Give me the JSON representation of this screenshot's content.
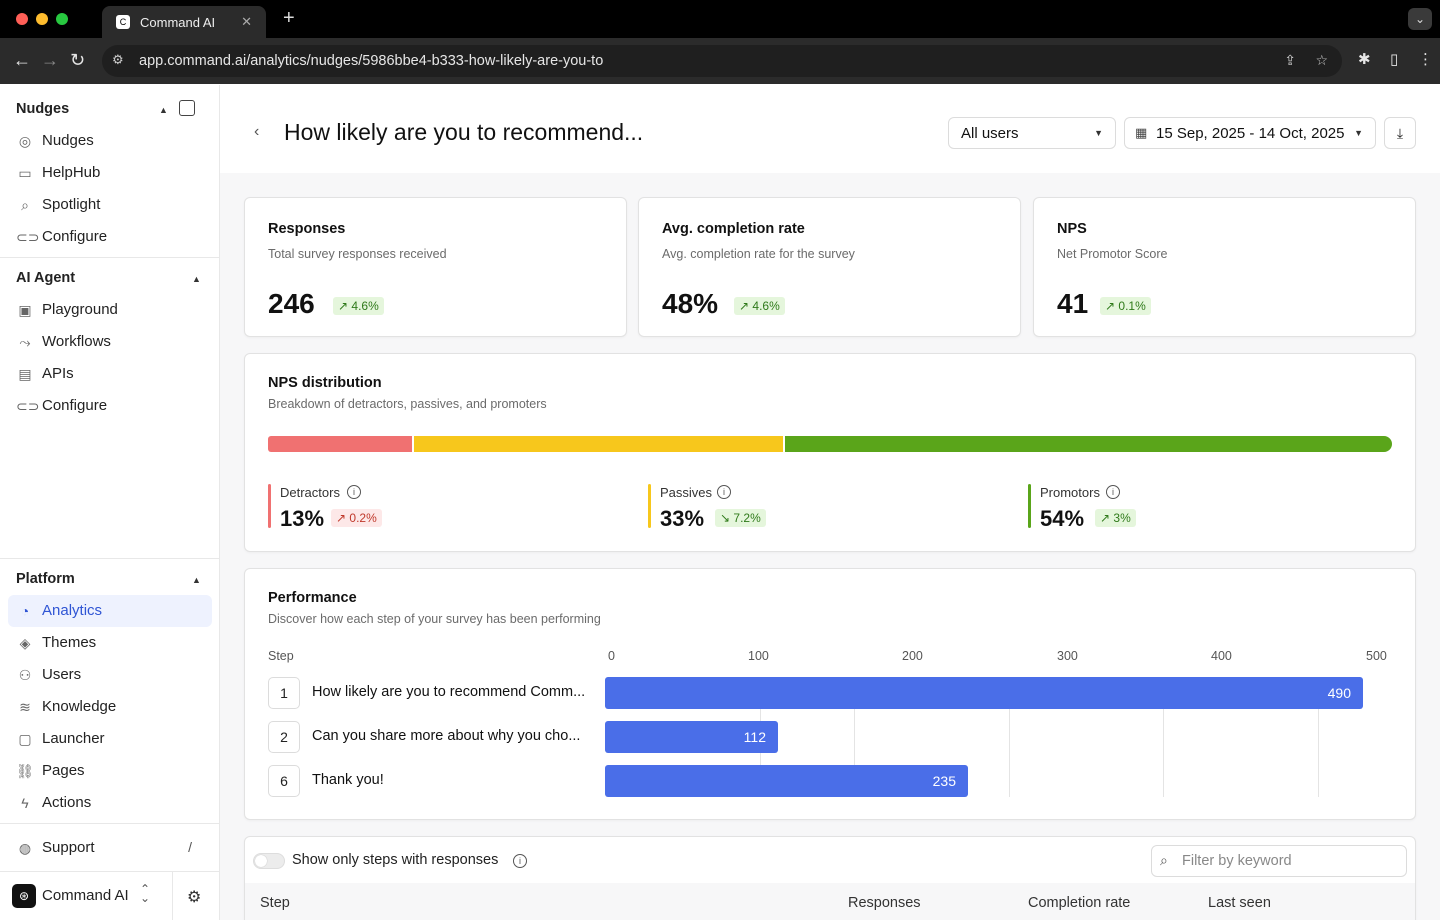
{
  "browser": {
    "tab_title": "Command AI",
    "tab_icon": "C",
    "url": "app.command.ai/analytics/nudges/5986bbe4-b333-how-likely-are-you-to"
  },
  "sidebar": {
    "sections": [
      {
        "title": "Nudges",
        "items": [
          {
            "label": "Nudges",
            "icon": "compass-icon"
          },
          {
            "label": "HelpHub",
            "icon": "book-icon"
          },
          {
            "label": "Spotlight",
            "icon": "search-icon"
          },
          {
            "label": "Configure",
            "icon": "toggle-icon"
          }
        ]
      },
      {
        "title": "AI Agent",
        "items": [
          {
            "label": "Playground",
            "icon": "robot-icon"
          },
          {
            "label": "Workflows",
            "icon": "workflow-icon"
          },
          {
            "label": "APIs",
            "icon": "api-icon"
          },
          {
            "label": "Configure",
            "icon": "toggle-icon"
          }
        ]
      },
      {
        "title": "Platform",
        "items": [
          {
            "label": "Analytics",
            "icon": "pie-chart-icon",
            "active": true
          },
          {
            "label": "Themes",
            "icon": "paint-icon"
          },
          {
            "label": "Users",
            "icon": "users-icon"
          },
          {
            "label": "Knowledge",
            "icon": "layers-icon"
          },
          {
            "label": "Launcher",
            "icon": "launcher-icon"
          },
          {
            "label": "Pages",
            "icon": "link-icon"
          },
          {
            "label": "Actions",
            "icon": "bolt-icon"
          }
        ]
      }
    ],
    "support": {
      "label": "Support",
      "shortcut": "/"
    },
    "workspace": {
      "name": "Command AI"
    }
  },
  "header": {
    "title": "How likely are you to recommend...",
    "audience_select": "All users",
    "date_range": "15 Sep, 2025 - 14 Oct, 2025"
  },
  "stats": [
    {
      "title": "Responses",
      "subtitle": "Total survey responses received",
      "value": "246",
      "delta": "4.6%",
      "direction": "up"
    },
    {
      "title": "Avg. completion rate",
      "subtitle": "Avg. completion rate for the survey",
      "value": "48%",
      "delta": "4.6%",
      "direction": "up"
    },
    {
      "title": "NPS",
      "subtitle": "Net Promotor Score",
      "value": "41",
      "delta": "0.1%",
      "direction": "up"
    }
  ],
  "nps_distribution": {
    "title": "NPS distribution",
    "subtitle": "Breakdown of detractors, passives, and promoters",
    "segments": [
      {
        "label": "Detractors",
        "value": "13%",
        "fraction": 0.13,
        "delta": "0.2%",
        "delta_dir": "up",
        "delta_style": "down",
        "color": "#f07171"
      },
      {
        "label": "Passives",
        "value": "33%",
        "fraction": 0.33,
        "delta": "7.2%",
        "delta_dir": "down",
        "delta_style": "up",
        "color": "#f7c71c"
      },
      {
        "label": "Promotors",
        "value": "54%",
        "fraction": 0.54,
        "delta": "3%",
        "delta_dir": "up",
        "delta_style": "up",
        "color": "#5aa51a"
      }
    ]
  },
  "performance": {
    "title": "Performance",
    "subtitle": "Discover how each step of your survey has been performing",
    "step_header": "Step"
  },
  "chart_data": {
    "type": "bar",
    "orientation": "horizontal",
    "categories": [
      "How likely are you to recommend Comm...",
      "Can you share more about why you cho...",
      "Thank you!"
    ],
    "step_numbers": [
      "1",
      "2",
      "6"
    ],
    "values": [
      490,
      112,
      235
    ],
    "xlim": [
      0,
      500
    ],
    "ticks": [
      0,
      100,
      200,
      300,
      400,
      500
    ],
    "color": "#4a6ee8"
  },
  "table": {
    "toggle_label": "Show only steps with responses",
    "search_placeholder": "Filter by keyword",
    "columns": [
      "Step",
      "Responses",
      "Completion rate",
      "Last seen"
    ]
  }
}
